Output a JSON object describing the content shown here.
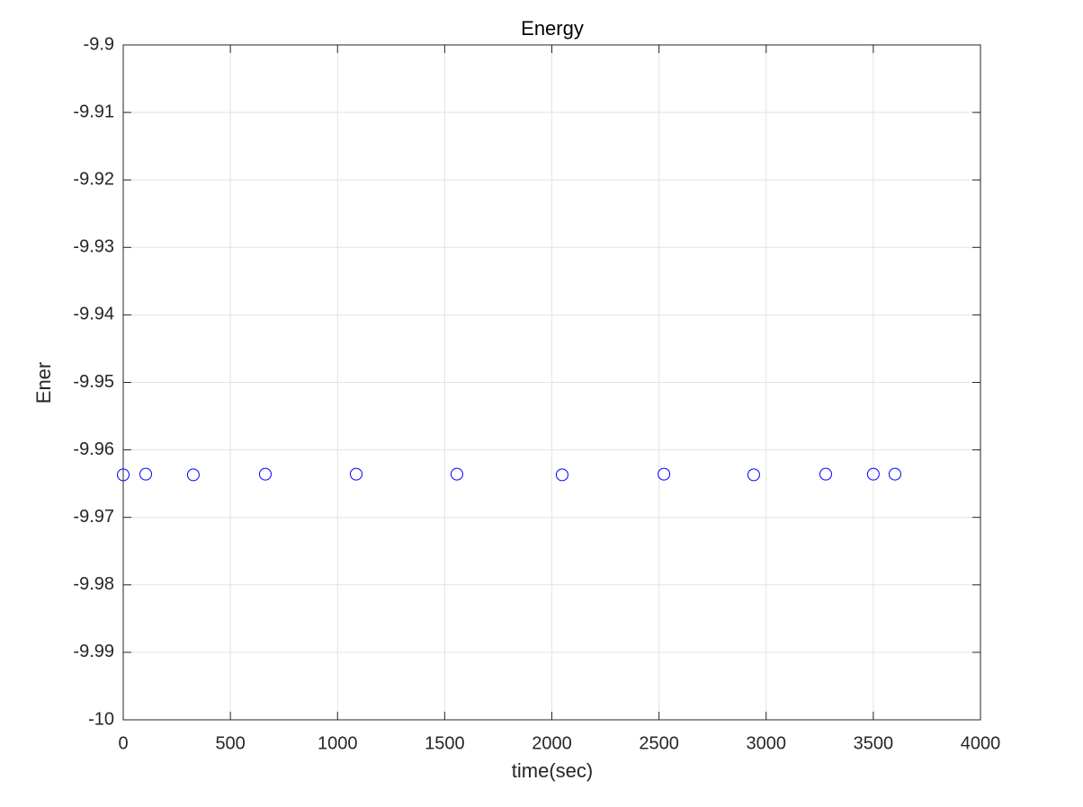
{
  "chart_data": {
    "type": "scatter",
    "title": "Energy",
    "x_label": "time(sec)",
    "y_label": "Ener",
    "x": [
      0,
      105,
      327,
      663,
      1087,
      1557,
      2048,
      2523,
      2942,
      3278,
      3500,
      3601
    ],
    "values": [
      -9.9637,
      -9.9636,
      -9.9637,
      -9.9636,
      -9.9636,
      -9.9636,
      -9.9637,
      -9.9636,
      -9.9637,
      -9.9636,
      -9.9636,
      -9.9636
    ],
    "color": "#0000ff",
    "xlim": [
      0,
      4000
    ],
    "xticks": [
      0,
      500,
      1000,
      1500,
      2000,
      2500,
      3000,
      3500,
      4000
    ],
    "ylim": [
      -10,
      -9.9
    ],
    "yticks": [
      -10,
      -9.99,
      -9.98,
      -9.97,
      -9.96,
      -9.95,
      -9.94,
      -9.93,
      -9.92,
      -9.91,
      -9.9
    ],
    "grid": true
  }
}
